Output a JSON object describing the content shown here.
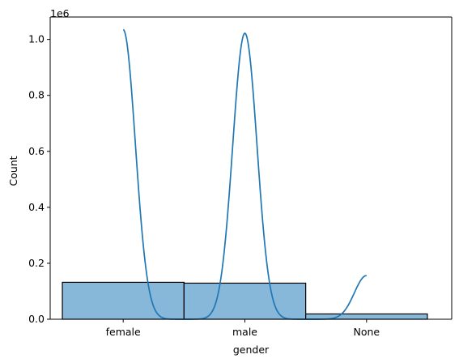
{
  "chart_data": {
    "type": "bar",
    "xlabel": "gender",
    "ylabel": "Count",
    "offset_label": "1e6",
    "categories": [
      "female",
      "male",
      "None"
    ],
    "values": [
      132000,
      129000,
      19000
    ],
    "ylim": [
      0,
      1.08
    ],
    "yticks": [
      0.0,
      0.2,
      0.4,
      0.6,
      0.8,
      1.0
    ],
    "ytick_labels": [
      "0.0",
      "0.2",
      "0.4",
      "0.6",
      "0.8",
      "1.0"
    ],
    "grid": false,
    "legend": "none",
    "kde_peaks": [
      {
        "category": "female",
        "peak_value": 1035000,
        "peak_x": -0.5
      },
      {
        "category": "male",
        "peak_value": 1022000,
        "peak_x": 0.5
      },
      {
        "category": "None",
        "peak_value": 156000,
        "peak_x": 1.5
      }
    ],
    "colors": {
      "bar_fill": "#87b7d9",
      "bar_edge": "#000000",
      "kde_line": "#1f77b4"
    }
  }
}
